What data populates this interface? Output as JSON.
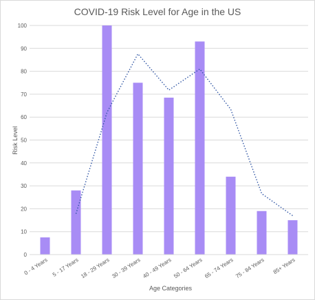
{
  "chart_data": {
    "type": "bar",
    "title": "COVID-19 Risk Level for Age in the US",
    "xlabel": "Age Categories",
    "ylabel": "Risk Level",
    "ylim": [
      0,
      100
    ],
    "yticks": [
      0,
      10,
      20,
      30,
      40,
      50,
      60,
      70,
      80,
      90,
      100
    ],
    "grid": true,
    "categories": [
      "0 - 4 Years",
      "5 - 17 Years",
      "18 - 29 Years",
      "30 - 39 Years",
      "40 - 49 Years",
      "50 - 64 Years",
      "65 - 74 Years",
      "75 - 84 Years",
      "85+ Years"
    ],
    "values": [
      7.5,
      28,
      100,
      75,
      68.5,
      93,
      34,
      19,
      15
    ],
    "trendline": {
      "style": "dotted",
      "start_category_index": 1,
      "values": [
        17.8,
        62,
        87.6,
        71.8,
        81,
        63.4,
        26.6,
        17
      ]
    },
    "colors": {
      "bar": "#a88cf5",
      "trendline": "#2f55a4",
      "grid": "#d9d9d9",
      "text": "#595959"
    }
  }
}
